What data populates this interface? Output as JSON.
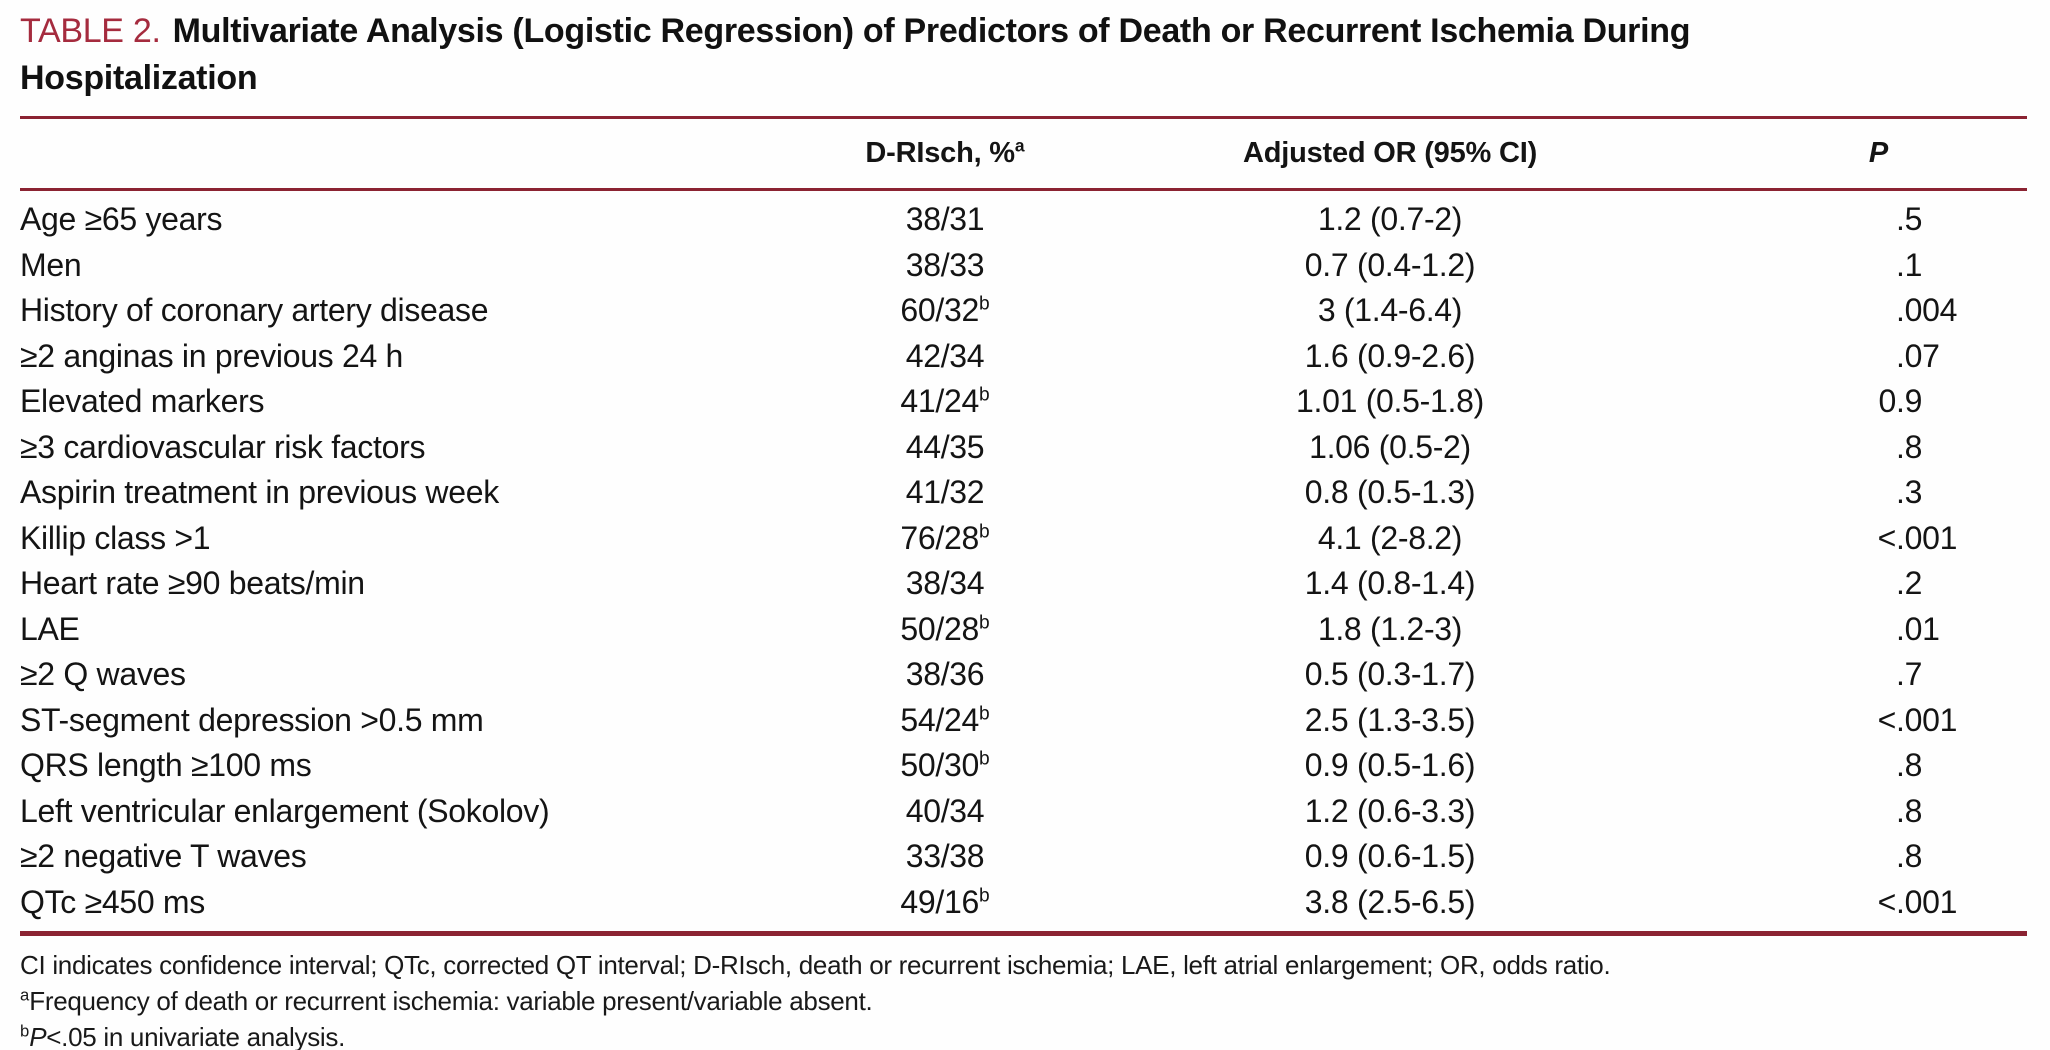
{
  "title": {
    "label": "TABLE 2.",
    "line1": "Multivariate Analysis (Logistic Regression) of Predictors of Death or Recurrent Ischemia During",
    "line2": "Hospitalization"
  },
  "table": {
    "columns": {
      "variable": {
        "label": ""
      },
      "drisch": {
        "label": "D-RIsch, %",
        "sup": "a"
      },
      "or": {
        "label": "Adjusted OR (95% CI)"
      },
      "p": {
        "label": "P"
      }
    },
    "rows": [
      {
        "label": "Age ≥65 years",
        "drisch": "38/31",
        "drisch_sup": "",
        "or": "1.2 (0.7-2)",
        "p": ".5"
      },
      {
        "label": "Men",
        "drisch": "38/33",
        "drisch_sup": "",
        "or": "0.7 (0.4-1.2)",
        "p": ".1"
      },
      {
        "label": "History of coronary artery disease",
        "drisch": "60/32",
        "drisch_sup": "b",
        "or": "3 (1.4-6.4)",
        "p": ".004"
      },
      {
        "label": "≥2 anginas in previous 24 h",
        "drisch": "42/34",
        "drisch_sup": "",
        "or": "1.6 (0.9-2.6)",
        "p": ".07"
      },
      {
        "label": "Elevated markers",
        "drisch": "41/24",
        "drisch_sup": "b",
        "or": "1.01 (0.5-1.8)",
        "p": "0.9"
      },
      {
        "label": "≥3 cardiovascular risk factors",
        "drisch": "44/35",
        "drisch_sup": "",
        "or": "1.06 (0.5-2)",
        "p": ".8"
      },
      {
        "label": "Aspirin treatment in previous week",
        "drisch": "41/32",
        "drisch_sup": "",
        "or": "0.8 (0.5-1.3)",
        "p": ".3"
      },
      {
        "label": "Killip class >1",
        "drisch": "76/28",
        "drisch_sup": "b",
        "or": "4.1 (2-8.2)",
        "p": "<.001"
      },
      {
        "label": "Heart rate ≥90 beats/min",
        "drisch": "38/34",
        "drisch_sup": "",
        "or": "1.4 (0.8-1.4)",
        "p": ".2"
      },
      {
        "label": "LAE",
        "drisch": "50/28",
        "drisch_sup": "b",
        "or": "1.8 (1.2-3)",
        "p": ".01"
      },
      {
        "label": "≥2 Q waves",
        "drisch": "38/36",
        "drisch_sup": "",
        "or": "0.5 (0.3-1.7)",
        "p": ".7"
      },
      {
        "label": "ST-segment depression >0.5 mm",
        "drisch": "54/24",
        "drisch_sup": "b",
        "or": "2.5 (1.3-3.5)",
        "p": "<.001"
      },
      {
        "label": "QRS length ≥100 ms",
        "drisch": "50/30",
        "drisch_sup": "b",
        "or": "0.9 (0.5-1.6)",
        "p": ".8"
      },
      {
        "label": "Left ventricular enlargement (Sokolov)",
        "drisch": "40/34",
        "drisch_sup": "",
        "or": "1.2 (0.6-3.3)",
        "p": ".8"
      },
      {
        "label": "≥2 negative T waves",
        "drisch": "33/38",
        "drisch_sup": "",
        "or": "0.9 (0.6-1.5)",
        "p": ".8"
      },
      {
        "label": "QTc ≥450 ms",
        "drisch": "49/16",
        "drisch_sup": "b",
        "or": "3.8 (2.5-6.5)",
        "p": "<.001"
      }
    ]
  },
  "footnotes": {
    "abbreviations": "CI indicates confidence interval; QTc, corrected QT interval; D-RIsch, death or recurrent ischemia; LAE, left atrial enlargement; OR, odds ratio.",
    "a": {
      "marker": "a",
      "text": "Frequency of death or recurrent ischemia: variable present/variable absent."
    },
    "b": {
      "marker": "b",
      "italic": "P",
      "text": "<.05 in univariate analysis."
    }
  },
  "colors": {
    "accent_text": "#A52B3E",
    "rule": "#8B2332",
    "body_text": "#141414"
  }
}
